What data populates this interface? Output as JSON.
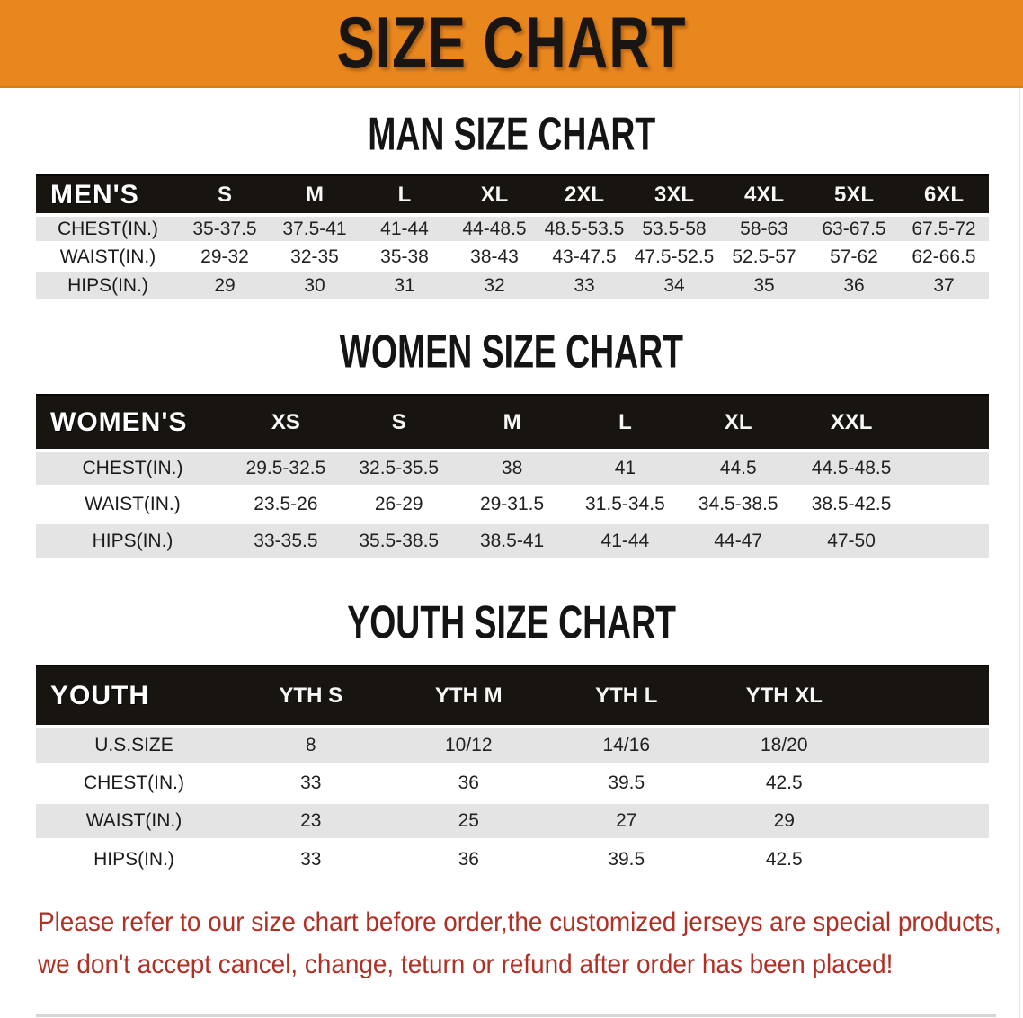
{
  "banner": {
    "title": "SIZE CHART"
  },
  "colors": {
    "banner_bg": "#E8871E",
    "header_band": "#18140F",
    "row_stripe": "#E4E4E4",
    "notice_red": "#B03026"
  },
  "sections": [
    {
      "heading": "MAN SIZE CHART",
      "label": "MEN'S",
      "columns": [
        "S",
        "M",
        "L",
        "XL",
        "2XL",
        "3XL",
        "4XL",
        "5XL",
        "6XL"
      ],
      "rows": [
        {
          "label": "CHEST(IN.)",
          "values": [
            "35-37.5",
            "37.5-41",
            "41-44",
            "44-48.5",
            "48.5-53.5",
            "53.5-58",
            "58-63",
            "63-67.5",
            "67.5-72"
          ]
        },
        {
          "label": "WAIST(IN.)",
          "values": [
            "29-32",
            "32-35",
            "35-38",
            "38-43",
            "43-47.5",
            "47.5-52.5",
            "52.5-57",
            "57-62",
            "62-66.5"
          ]
        },
        {
          "label": "HIPS(IN.)",
          "values": [
            "29",
            "30",
            "31",
            "32",
            "33",
            "34",
            "35",
            "36",
            "37"
          ]
        }
      ]
    },
    {
      "heading": "WOMEN SIZE CHART",
      "label": "WOMEN'S",
      "columns": [
        "XS",
        "S",
        "M",
        "L",
        "XL",
        "XXL"
      ],
      "rows": [
        {
          "label": "CHEST(IN.)",
          "values": [
            "29.5-32.5",
            "32.5-35.5",
            "38",
            "41",
            "44.5",
            "44.5-48.5"
          ]
        },
        {
          "label": "WAIST(IN.)",
          "values": [
            "23.5-26",
            "26-29",
            "29-31.5",
            "31.5-34.5",
            "34.5-38.5",
            "38.5-42.5"
          ]
        },
        {
          "label": "HIPS(IN.)",
          "values": [
            "33-35.5",
            "35.5-38.5",
            "38.5-41",
            "41-44",
            "44-47",
            "47-50"
          ]
        }
      ]
    },
    {
      "heading": "YOUTH SIZE CHART",
      "label": "YOUTH",
      "columns": [
        "YTH S",
        "YTH M",
        "YTH L",
        "YTH XL"
      ],
      "rows": [
        {
          "label": "U.S.SIZE",
          "values": [
            "8",
            "10/12",
            "14/16",
            "18/20"
          ]
        },
        {
          "label": "CHEST(IN.)",
          "values": [
            "33",
            "36",
            "39.5",
            "42.5"
          ]
        },
        {
          "label": "WAIST(IN.)",
          "values": [
            "23",
            "25",
            "27",
            "29"
          ]
        },
        {
          "label": "HIPS(IN.)",
          "values": [
            "33",
            "36",
            "39.5",
            "42.5"
          ]
        }
      ]
    }
  ],
  "footer": {
    "line1": "Please refer to our size chart before order,the customized jerseys are special products,",
    "line2": "we don't accept cancel, change, teturn or refund after order has been placed!"
  }
}
